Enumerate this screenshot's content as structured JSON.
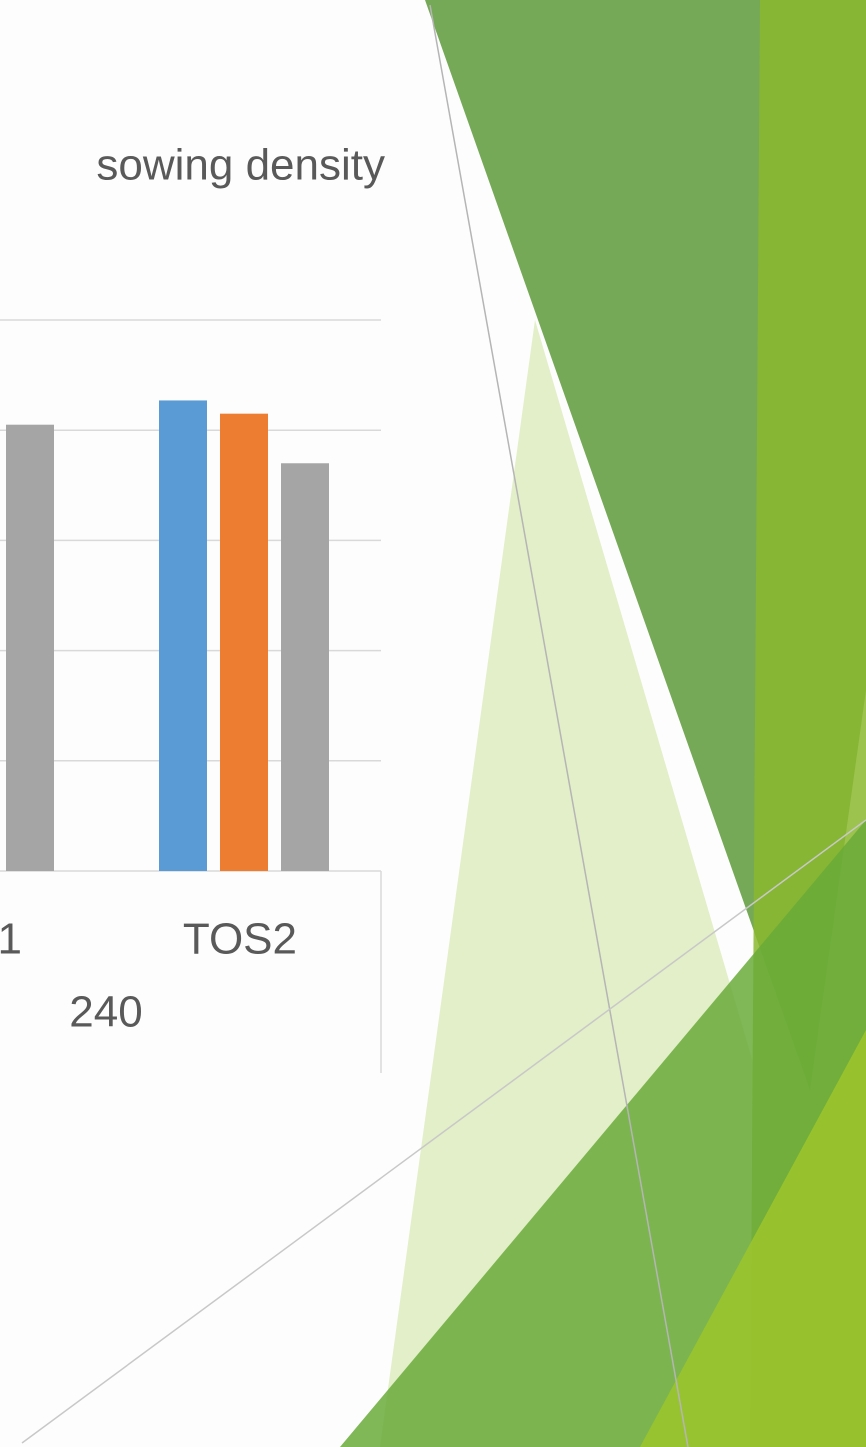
{
  "chart_data": {
    "type": "bar",
    "title": "sowing density",
    "categories": [
      "1",
      "TOS2"
    ],
    "group_label": "240",
    "series": [
      {
        "color": "#5b9bd5",
        "values": [
          null,
          4.27
        ]
      },
      {
        "color": "#ed7d31",
        "values": [
          null,
          4.15
        ]
      },
      {
        "color": "#a5a5a5",
        "values": [
          4.05,
          3.7
        ]
      }
    ],
    "ylim": [
      0,
      5
    ],
    "yticks": [
      0,
      1,
      2,
      3,
      4,
      5
    ],
    "grid": true
  }
}
